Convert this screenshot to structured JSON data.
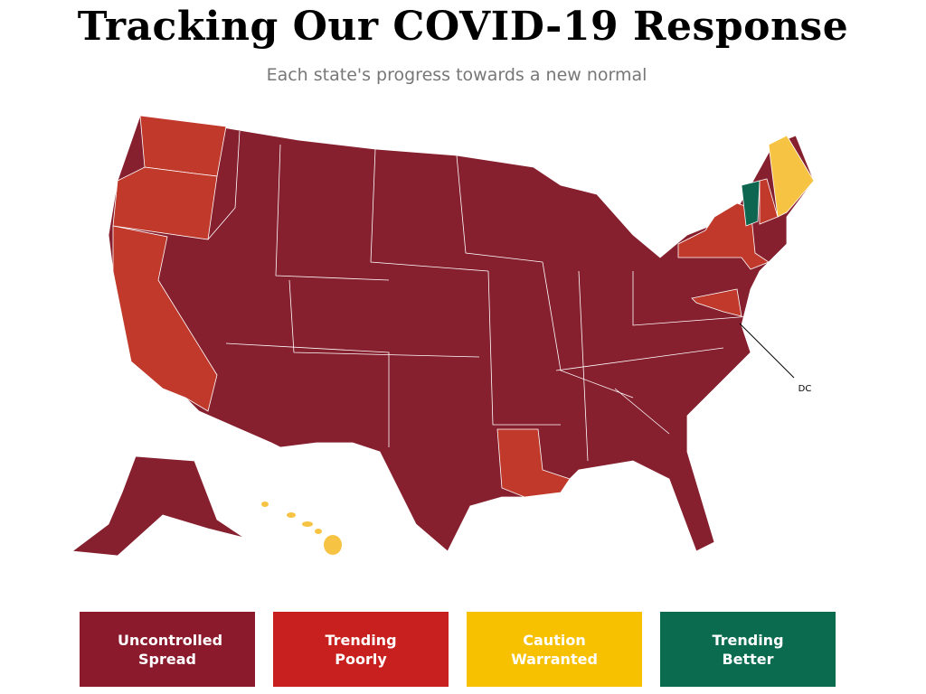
{
  "header": {
    "title": "Tracking Our COVID-19 Response",
    "subtitle": "Each state's progress towards a new normal"
  },
  "map": {
    "annotations": [
      "DC"
    ]
  },
  "legend": {
    "items": [
      "Uncontrolled Spread",
      "Trending Poorly",
      "Caution Warranted",
      "Trending Better"
    ]
  }
}
